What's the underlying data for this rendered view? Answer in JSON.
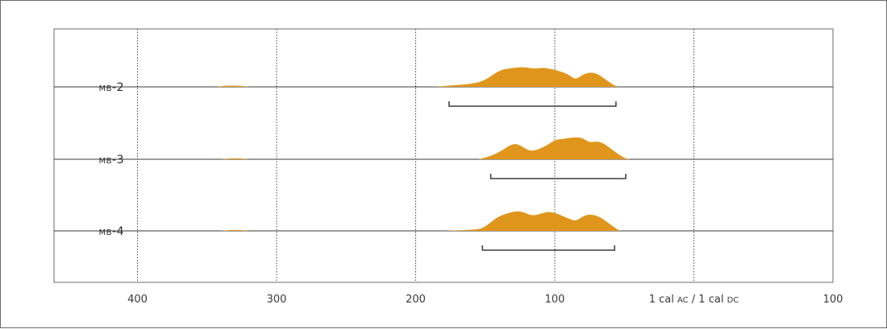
{
  "chart_data": {
    "type": "area",
    "x_ticks": [
      {
        "value": 400,
        "label": "400"
      },
      {
        "value": 300,
        "label": "300"
      },
      {
        "value": 200,
        "label": "200"
      },
      {
        "value": 100,
        "label": "100"
      },
      {
        "value": 0,
        "label": "1 cal AC / 1 cal DC"
      },
      {
        "value": -100,
        "label": "100"
      }
    ],
    "xlim": [
      460,
      -100
    ],
    "x_direction": "decreasing",
    "grid": "vertical-dotted",
    "fill_color": "#e0961c",
    "line_color": "#3a3a3a",
    "series": [
      {
        "name": "MB-2",
        "distribution": [
          [
            343,
            0
          ],
          [
            338,
            0.035
          ],
          [
            332,
            0.04
          ],
          [
            326,
            0.035
          ],
          [
            320,
            0
          ],
          [
            185,
            0
          ],
          [
            180,
            0.03
          ],
          [
            170,
            0.06
          ],
          [
            160,
            0.09
          ],
          [
            150,
            0.2
          ],
          [
            140,
            0.52
          ],
          [
            130,
            0.59
          ],
          [
            122,
            0.62
          ],
          [
            115,
            0.56
          ],
          [
            108,
            0.6
          ],
          [
            102,
            0.55
          ],
          [
            95,
            0.47
          ],
          [
            90,
            0.38
          ],
          [
            85,
            0.22
          ],
          [
            80,
            0.38
          ],
          [
            75,
            0.45
          ],
          [
            70,
            0.42
          ],
          [
            65,
            0.28
          ],
          [
            60,
            0.12
          ],
          [
            55,
            0
          ]
        ],
        "range": [
          176,
          56
        ]
      },
      {
        "name": "MB-3",
        "distribution": [
          [
            340,
            0
          ],
          [
            335,
            0.025
          ],
          [
            330,
            0.03
          ],
          [
            325,
            0.025
          ],
          [
            320,
            0
          ],
          [
            155,
            0
          ],
          [
            148,
            0.07
          ],
          [
            140,
            0.22
          ],
          [
            130,
            0.5
          ],
          [
            125,
            0.44
          ],
          [
            118,
            0.25
          ],
          [
            112,
            0.3
          ],
          [
            105,
            0.45
          ],
          [
            100,
            0.6
          ],
          [
            95,
            0.63
          ],
          [
            90,
            0.66
          ],
          [
            85,
            0.69
          ],
          [
            80,
            0.66
          ],
          [
            75,
            0.52
          ],
          [
            70,
            0.56
          ],
          [
            65,
            0.5
          ],
          [
            60,
            0.34
          ],
          [
            55,
            0.18
          ],
          [
            50,
            0.04
          ],
          [
            46,
            0
          ]
        ],
        "range": [
          146,
          49
        ]
      },
      {
        "name": "MB-4",
        "distribution": [
          [
            340,
            0
          ],
          [
            335,
            0.025
          ],
          [
            330,
            0.03
          ],
          [
            325,
            0.025
          ],
          [
            320,
            0
          ],
          [
            180,
            0
          ],
          [
            160,
            0.03
          ],
          [
            152,
            0.07
          ],
          [
            145,
            0.3
          ],
          [
            140,
            0.46
          ],
          [
            130,
            0.6
          ],
          [
            124,
            0.61
          ],
          [
            116,
            0.46
          ],
          [
            110,
            0.54
          ],
          [
            104,
            0.6
          ],
          [
            98,
            0.53
          ],
          [
            90,
            0.38
          ],
          [
            85,
            0.3
          ],
          [
            80,
            0.45
          ],
          [
            75,
            0.52
          ],
          [
            68,
            0.45
          ],
          [
            62,
            0.26
          ],
          [
            57,
            0.1
          ],
          [
            53,
            0
          ]
        ],
        "range": [
          152,
          57
        ]
      }
    ]
  }
}
